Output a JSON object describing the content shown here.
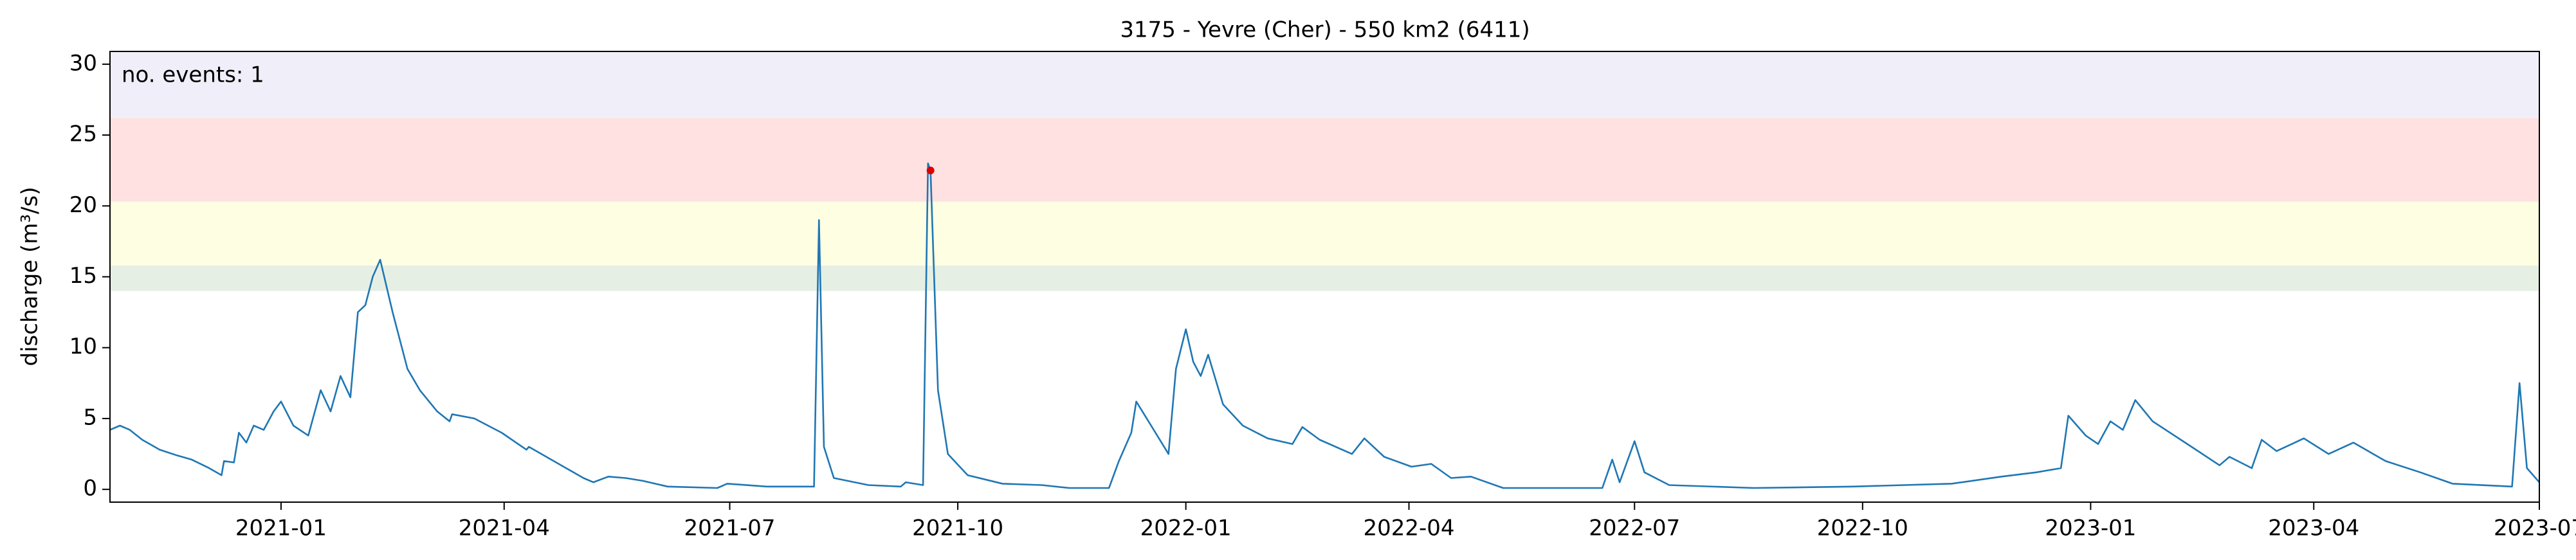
{
  "chart_data": {
    "type": "line",
    "title": "3175 - Yevre (Cher) - 550 km2 (6411)",
    "y_label": "discharge (m³/s)",
    "annotation": "no. events: 1",
    "annotation_color": "#dd0000",
    "xlim": [
      "2020-10-24",
      "2023-07-01"
    ],
    "xticks": [
      "2021-01",
      "2021-04",
      "2021-07",
      "2021-10",
      "2022-01",
      "2022-04",
      "2022-07",
      "2022-10",
      "2023-01",
      "2023-04",
      "2023-07"
    ],
    "ylim": [
      -0.9,
      30.9
    ],
    "yticks": [
      0,
      5,
      10,
      15,
      20,
      25,
      30
    ],
    "bands": [
      {
        "from": 14,
        "to": 15.8,
        "color": "#e6efe4"
      },
      {
        "from": 15.8,
        "to": 20.3,
        "color": "#fefee3"
      },
      {
        "from": 20.3,
        "to": 26.2,
        "color": "#ffe1e1"
      },
      {
        "from": 26.2,
        "to": 30.9,
        "color": "#f0eef8"
      }
    ],
    "events": {
      "color": "#dd0000",
      "x": [
        "2021-09-20"
      ],
      "values": [
        22.5
      ]
    },
    "series": [
      {
        "color": "#1f77b4",
        "x": [
          "2020-10-24",
          "2020-10-28",
          "2020-11-01",
          "2020-11-06",
          "2020-11-13",
          "2020-11-20",
          "2020-11-26",
          "2020-12-03",
          "2020-12-08",
          "2020-12-09",
          "2020-12-13",
          "2020-12-15",
          "2020-12-18",
          "2020-12-21",
          "2020-12-25",
          "2020-12-29",
          "2021-01-01",
          "2021-01-06",
          "2021-01-12",
          "2021-01-17",
          "2021-01-21",
          "2021-01-25",
          "2021-01-29",
          "2021-02-01",
          "2021-02-04",
          "2021-02-07",
          "2021-02-10",
          "2021-02-15",
          "2021-02-21",
          "2021-02-26",
          "2021-03-05",
          "2021-03-10",
          "2021-03-11",
          "2021-03-20",
          "2021-03-31",
          "2021-04-10",
          "2021-04-11",
          "2021-04-23",
          "2021-05-03",
          "2021-05-07",
          "2021-05-13",
          "2021-05-20",
          "2021-05-27",
          "2021-06-06",
          "2021-06-26",
          "2021-06-30",
          "2021-07-16",
          "2021-08-04",
          "2021-08-06",
          "2021-08-08",
          "2021-08-12",
          "2021-08-26",
          "2021-09-08",
          "2021-09-10",
          "2021-09-17",
          "2021-09-19",
          "2021-09-20",
          "2021-09-23",
          "2021-09-27",
          "2021-10-05",
          "2021-10-19",
          "2021-11-04",
          "2021-11-15",
          "2021-12-01",
          "2021-12-05",
          "2021-12-10",
          "2021-12-12",
          "2021-12-18",
          "2021-12-25",
          "2021-12-28",
          "2022-01-01",
          "2022-01-04",
          "2022-01-07",
          "2022-01-10",
          "2022-01-16",
          "2022-01-24",
          "2022-02-03",
          "2022-02-13",
          "2022-02-17",
          "2022-02-24",
          "2022-03-09",
          "2022-03-14",
          "2022-03-22",
          "2022-04-02",
          "2022-04-10",
          "2022-04-18",
          "2022-04-26",
          "2022-05-09",
          "2022-06-18",
          "2022-06-22",
          "2022-06-25",
          "2022-07-01",
          "2022-07-05",
          "2022-07-15",
          "2022-08-18",
          "2022-09-27",
          "2022-11-06",
          "2022-11-26",
          "2022-12-10",
          "2022-12-20",
          "2022-12-23",
          "2022-12-30",
          "2023-01-04",
          "2023-01-09",
          "2023-01-14",
          "2023-01-19",
          "2023-01-26",
          "2023-02-09",
          "2023-02-22",
          "2023-02-26",
          "2023-03-07",
          "2023-03-11",
          "2023-03-17",
          "2023-03-28",
          "2023-04-07",
          "2023-04-17",
          "2023-04-30",
          "2023-05-14",
          "2023-05-27",
          "2023-06-20",
          "2023-06-23",
          "2023-06-26",
          "2023-07-01"
        ],
        "values": [
          4.2,
          4.5,
          4.2,
          3.5,
          2.8,
          2.4,
          2.1,
          1.5,
          1.0,
          2.0,
          1.9,
          4.0,
          3.3,
          4.5,
          4.2,
          5.5,
          6.2,
          4.5,
          3.8,
          7.0,
          5.5,
          8.0,
          6.5,
          12.5,
          13.0,
          15.0,
          16.2,
          12.5,
          8.5,
          7.0,
          5.5,
          4.8,
          5.3,
          5.0,
          4.0,
          2.8,
          3.0,
          1.8,
          0.8,
          0.5,
          0.9,
          0.8,
          0.6,
          0.2,
          0.1,
          0.4,
          0.2,
          0.2,
          19.0,
          3.0,
          0.8,
          0.3,
          0.2,
          0.5,
          0.3,
          23.0,
          22.5,
          7.0,
          2.5,
          1.0,
          0.4,
          0.3,
          0.1,
          0.1,
          2.0,
          4.0,
          6.2,
          4.5,
          2.5,
          8.5,
          11.3,
          9.0,
          8.0,
          9.5,
          6.0,
          4.5,
          3.6,
          3.2,
          4.4,
          3.5,
          2.5,
          3.6,
          2.3,
          1.6,
          1.8,
          0.8,
          0.9,
          0.1,
          0.1,
          2.1,
          0.5,
          3.4,
          1.2,
          0.3,
          0.1,
          0.2,
          0.4,
          0.9,
          1.2,
          1.5,
          5.2,
          3.8,
          3.2,
          4.8,
          4.2,
          6.3,
          4.8,
          3.2,
          1.7,
          2.3,
          1.5,
          3.5,
          2.7,
          3.6,
          2.5,
          3.3,
          2.0,
          1.2,
          0.4,
          0.2,
          7.5,
          1.5,
          0.5
        ]
      }
    ]
  }
}
